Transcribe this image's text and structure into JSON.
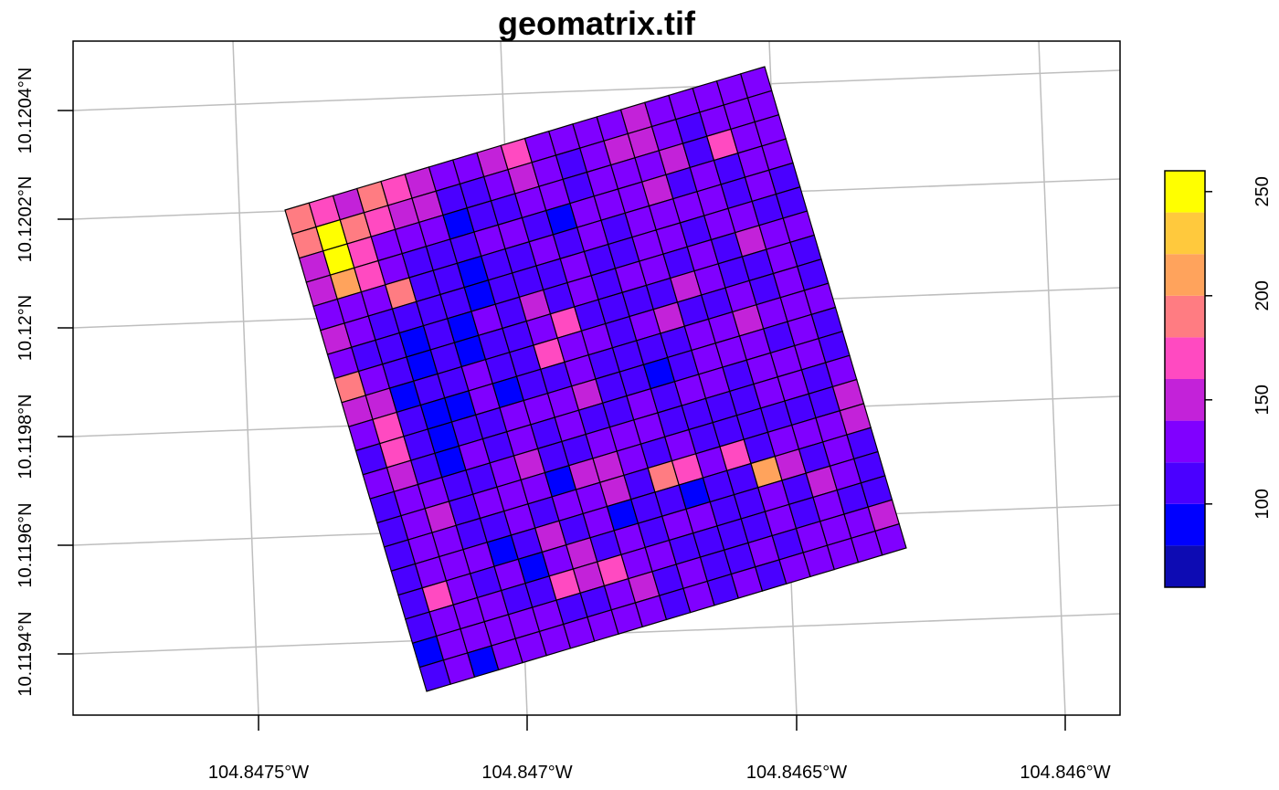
{
  "chart_data": {
    "type": "heatmap",
    "title": "geomatrix.tif",
    "x_ticks": [
      "104.8475°W",
      "104.847°W",
      "104.8465°W",
      "104.846°W"
    ],
    "y_ticks": [
      "10.1194°N",
      "10.1196°N",
      "10.1198°N",
      "10.12°N",
      "10.1202°N",
      "10.1204°N"
    ],
    "grid": true,
    "legend": {
      "placement": "right",
      "ticks": [
        "100",
        "150",
        "200",
        "250"
      ],
      "tick_values": [
        100,
        150,
        200,
        250
      ],
      "range": [
        60,
        260
      ],
      "breaks": [
        60,
        80,
        100,
        120,
        140,
        160,
        180,
        200,
        220,
        240,
        260
      ],
      "colors": [
        "#0D0BB3",
        "#0000FF",
        "#4A00FF",
        "#8000FF",
        "#C322D9",
        "#FF4AC1",
        "#FF7C82",
        "#FFA35C",
        "#FFC93D",
        "#FFFF00"
      ]
    },
    "raster": {
      "rows": 20,
      "cols": 20,
      "values": [
        [
          185,
          165,
          145,
          185,
          175,
          155,
          135,
          135,
          145,
          165,
          125,
          125,
          125,
          135,
          145,
          135,
          135,
          135,
          135,
          125
        ],
        [
          185,
          255,
          185,
          175,
          145,
          145,
          105,
          115,
          135,
          145,
          125,
          105,
          125,
          145,
          145,
          125,
          105,
          125,
          125,
          135
        ],
        [
          150,
          255,
          165,
          135,
          125,
          125,
          95,
          115,
          105,
          125,
          125,
          115,
          125,
          135,
          135,
          145,
          115,
          165,
          135,
          125
        ],
        [
          145,
          215,
          175,
          135,
          105,
          105,
          115,
          125,
          125,
          105,
          95,
          125,
          135,
          135,
          145,
          115,
          125,
          115,
          135,
          125
        ],
        [
          135,
          135,
          125,
          185,
          115,
          105,
          95,
          105,
          115,
          125,
          115,
          125,
          105,
          135,
          125,
          125,
          125,
          115,
          125,
          105
        ],
        [
          155,
          125,
          105,
          115,
          105,
          105,
          95,
          115,
          115,
          115,
          125,
          105,
          115,
          125,
          125,
          115,
          135,
          125,
          115,
          105
        ],
        [
          135,
          115,
          105,
          95,
          105,
          95,
          135,
          105,
          145,
          115,
          125,
          115,
          125,
          135,
          105,
          135,
          115,
          145,
          125,
          125
        ],
        [
          185,
          135,
          115,
          95,
          105,
          95,
          115,
          105,
          125,
          165,
          105,
          115,
          105,
          115,
          155,
          125,
          115,
          105,
          125,
          115
        ],
        [
          145,
          155,
          85,
          105,
          115,
          125,
          105,
          115,
          175,
          125,
          125,
          115,
          125,
          155,
          105,
          115,
          125,
          105,
          125,
          115
        ],
        [
          135,
          175,
          105,
          95,
          95,
          125,
          95,
          115,
          115,
          125,
          105,
          105,
          105,
          105,
          125,
          125,
          145,
          125,
          125,
          125
        ],
        [
          105,
          175,
          105,
          95,
          105,
          115,
          125,
          125,
          125,
          145,
          115,
          115,
          95,
          115,
          135,
          125,
          125,
          115,
          125,
          115
        ],
        [
          125,
          145,
          105,
          95,
          125,
          115,
          135,
          115,
          125,
          105,
          115,
          125,
          115,
          125,
          125,
          115,
          125,
          125,
          135,
          115
        ],
        [
          115,
          125,
          135,
          115,
          115,
          125,
          145,
          115,
          105,
          125,
          125,
          135,
          105,
          115,
          115,
          105,
          125,
          125,
          115,
          125
        ],
        [
          115,
          125,
          145,
          105,
          135,
          125,
          135,
          95,
          145,
          145,
          135,
          115,
          125,
          115,
          105,
          115,
          105,
          115,
          105,
          145
        ],
        [
          105,
          135,
          125,
          115,
          115,
          135,
          115,
          125,
          125,
          145,
          105,
          185,
          175,
          125,
          165,
          115,
          135,
          125,
          135,
          145
        ],
        [
          105,
          125,
          135,
          125,
          95,
          115,
          145,
          115,
          125,
          95,
          115,
          115,
          95,
          115,
          115,
          215,
          155,
          115,
          135,
          115
        ],
        [
          105,
          165,
          125,
          115,
          125,
          95,
          135,
          145,
          115,
          135,
          115,
          125,
          125,
          105,
          115,
          135,
          115,
          145,
          125,
          115
        ],
        [
          115,
          125,
          135,
          125,
          105,
          115,
          165,
          145,
          165,
          125,
          125,
          115,
          105,
          115,
          105,
          125,
          115,
          125,
          115,
          115
        ],
        [
          95,
          125,
          135,
          125,
          135,
          125,
          105,
          115,
          125,
          145,
          115,
          125,
          115,
          105,
          125,
          115,
          125,
          135,
          125,
          145
        ],
        [
          115,
          125,
          95,
          125,
          125,
          125,
          125,
          135,
          125,
          125,
          115,
          125,
          115,
          125,
          115,
          125,
          125,
          125,
          125,
          125
        ]
      ]
    }
  }
}
